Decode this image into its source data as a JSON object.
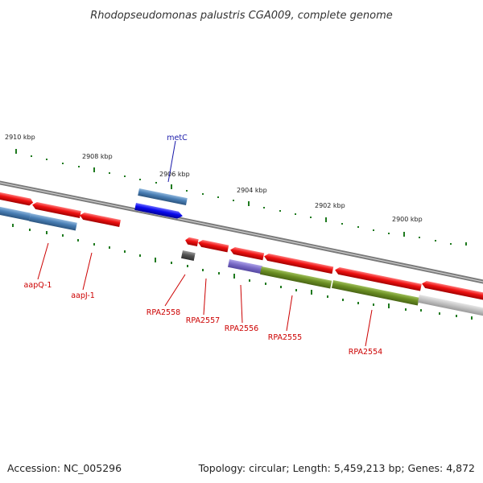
{
  "title": "Rhodopseudomonas palustris CGA009, complete genome",
  "footer": {
    "accession": "Accession: NC_005296",
    "summary": "Topology: circular; Length: 5,459,213 bp; Genes: 4,872"
  },
  "ruler": {
    "ticks": [
      {
        "label": "2910 kbp"
      },
      {
        "label": "2908 kbp"
      },
      {
        "label": "2906 kbp"
      },
      {
        "label": "2904 kbp"
      },
      {
        "label": "2902 kbp"
      },
      {
        "label": "2900 kbp"
      }
    ],
    "tick_color": "#1f7a1f"
  },
  "backbone_color": "#808080",
  "colors": {
    "red_gene": "#ee1111",
    "steel_gene": "#4a7fb5",
    "blue_gene": "#0a0aee",
    "gray_gene": "#555555",
    "purple_gene": "#7b6cc8",
    "olive_gene": "#6b8f23",
    "light_gray_gene": "#bdbdbd",
    "label_red": "#cc0000",
    "label_blue": "#1a1aaa"
  },
  "labels": {
    "metC": "metC",
    "aapQ1": "aapQ-1",
    "aapJ1": "aapJ-1",
    "RPA2558": "RPA2558",
    "RPA2557": "RPA2557",
    "RPA2556": "RPA2556",
    "RPA2555": "RPA2555",
    "RPA2554": "RPA2554"
  }
}
